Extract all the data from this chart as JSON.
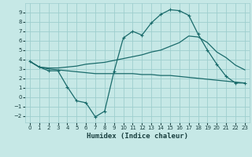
{
  "xlabel": "Humidex (Indice chaleur)",
  "bg_color": "#c6e8e6",
  "grid_color": "#9ecece",
  "line_color": "#1a6b6b",
  "xlim": [
    -0.5,
    23.5
  ],
  "ylim": [
    -2.7,
    10.0
  ],
  "xticks": [
    0,
    1,
    2,
    3,
    4,
    5,
    6,
    7,
    8,
    9,
    10,
    11,
    12,
    13,
    14,
    15,
    16,
    17,
    18,
    19,
    20,
    21,
    22,
    23
  ],
  "yticks": [
    -2,
    -1,
    0,
    1,
    2,
    3,
    4,
    5,
    6,
    7,
    8,
    9
  ],
  "series1_x": [
    0,
    1,
    2,
    3,
    4,
    5,
    6,
    7,
    8,
    9,
    10,
    11,
    12,
    13,
    14,
    15,
    16,
    17,
    18,
    19,
    20,
    21,
    22,
    23
  ],
  "series1_y": [
    3.8,
    3.2,
    2.8,
    2.8,
    1.1,
    -0.4,
    -0.6,
    -2.1,
    -1.5,
    2.7,
    6.3,
    7.0,
    6.6,
    7.9,
    8.8,
    9.3,
    9.2,
    8.7,
    6.7,
    5.0,
    3.5,
    2.2,
    1.5,
    1.5
  ],
  "series2_x": [
    0,
    1,
    2,
    3,
    4,
    5,
    6,
    7,
    8,
    9,
    10,
    11,
    12,
    13,
    14,
    15,
    16,
    17,
    18,
    19,
    20,
    21,
    22,
    23
  ],
  "series2_y": [
    3.8,
    3.2,
    3.1,
    3.1,
    3.2,
    3.3,
    3.5,
    3.6,
    3.7,
    3.9,
    4.1,
    4.3,
    4.5,
    4.8,
    5.0,
    5.4,
    5.8,
    6.5,
    6.4,
    5.8,
    4.8,
    4.2,
    3.4,
    2.9
  ],
  "series3_x": [
    0,
    1,
    2,
    3,
    4,
    5,
    6,
    7,
    8,
    9,
    10,
    11,
    12,
    13,
    14,
    15,
    16,
    17,
    18,
    19,
    20,
    21,
    22,
    23
  ],
  "series3_y": [
    3.8,
    3.2,
    3.0,
    2.9,
    2.8,
    2.7,
    2.6,
    2.5,
    2.5,
    2.5,
    2.5,
    2.5,
    2.4,
    2.4,
    2.3,
    2.3,
    2.2,
    2.1,
    2.0,
    1.9,
    1.8,
    1.7,
    1.6,
    1.5
  ]
}
